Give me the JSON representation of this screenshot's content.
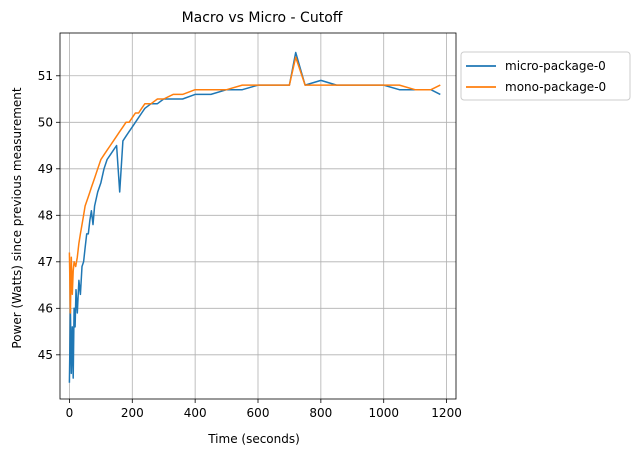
{
  "chart_data": {
    "type": "line",
    "title": "Macro vs Micro - Cutoff",
    "xlabel": "Time (seconds)",
    "ylabel": "Power (Watts) since previous measurement",
    "xlim": [
      -30,
      1230
    ],
    "ylim": [
      44.05,
      51.92
    ],
    "xticks": [
      0,
      200,
      400,
      600,
      800,
      1000,
      1200
    ],
    "yticks": [
      45,
      46,
      47,
      48,
      49,
      50,
      51
    ],
    "grid": true,
    "legend_position": "top-right",
    "series": [
      {
        "name": "micro-package-0",
        "color": "#1f77b4",
        "x": [
          0,
          3,
          6,
          9,
          12,
          15,
          18,
          21,
          25,
          30,
          35,
          40,
          45,
          50,
          55,
          60,
          65,
          70,
          75,
          80,
          90,
          100,
          110,
          120,
          130,
          140,
          150,
          160,
          170,
          180,
          190,
          200,
          210,
          220,
          230,
          240,
          260,
          280,
          300,
          330,
          360,
          400,
          450,
          500,
          550,
          600,
          650,
          700,
          720,
          750,
          800,
          850,
          900,
          950,
          1000,
          1050,
          1100,
          1150,
          1180
        ],
        "y": [
          44.4,
          46.0,
          44.6,
          45.6,
          44.5,
          46.0,
          45.6,
          46.4,
          45.9,
          46.6,
          46.3,
          46.9,
          47.0,
          47.3,
          47.6,
          47.6,
          47.9,
          48.1,
          47.8,
          48.2,
          48.5,
          48.7,
          49.0,
          49.2,
          49.3,
          49.4,
          49.5,
          48.5,
          49.6,
          49.7,
          49.8,
          49.9,
          50.0,
          50.1,
          50.2,
          50.3,
          50.4,
          50.4,
          50.5,
          50.5,
          50.5,
          50.6,
          50.6,
          50.7,
          50.7,
          50.8,
          50.8,
          50.8,
          51.5,
          50.8,
          50.9,
          50.8,
          50.8,
          50.8,
          50.8,
          50.7,
          50.7,
          50.7,
          50.6
        ]
      },
      {
        "name": "mono-package-0",
        "color": "#ff7f0e",
        "x": [
          0,
          3,
          6,
          9,
          12,
          15,
          20,
          25,
          30,
          35,
          40,
          45,
          50,
          55,
          60,
          65,
          70,
          75,
          80,
          90,
          100,
          110,
          120,
          130,
          140,
          150,
          160,
          170,
          180,
          190,
          200,
          210,
          220,
          230,
          240,
          260,
          280,
          300,
          330,
          360,
          400,
          450,
          500,
          550,
          600,
          650,
          700,
          720,
          750,
          800,
          850,
          900,
          950,
          1000,
          1050,
          1100,
          1150,
          1180
        ],
        "y": [
          47.2,
          45.9,
          47.1,
          46.3,
          46.8,
          47.0,
          46.9,
          47.1,
          47.4,
          47.6,
          47.8,
          48.0,
          48.2,
          48.3,
          48.4,
          48.5,
          48.6,
          48.7,
          48.8,
          49.0,
          49.2,
          49.3,
          49.4,
          49.5,
          49.6,
          49.7,
          49.8,
          49.9,
          50.0,
          50.0,
          50.1,
          50.2,
          50.2,
          50.3,
          50.4,
          50.4,
          50.5,
          50.5,
          50.6,
          50.6,
          50.7,
          50.7,
          50.7,
          50.8,
          50.8,
          50.8,
          50.8,
          51.4,
          50.8,
          50.8,
          50.8,
          50.8,
          50.8,
          50.8,
          50.8,
          50.7,
          50.7,
          50.8
        ]
      }
    ]
  }
}
